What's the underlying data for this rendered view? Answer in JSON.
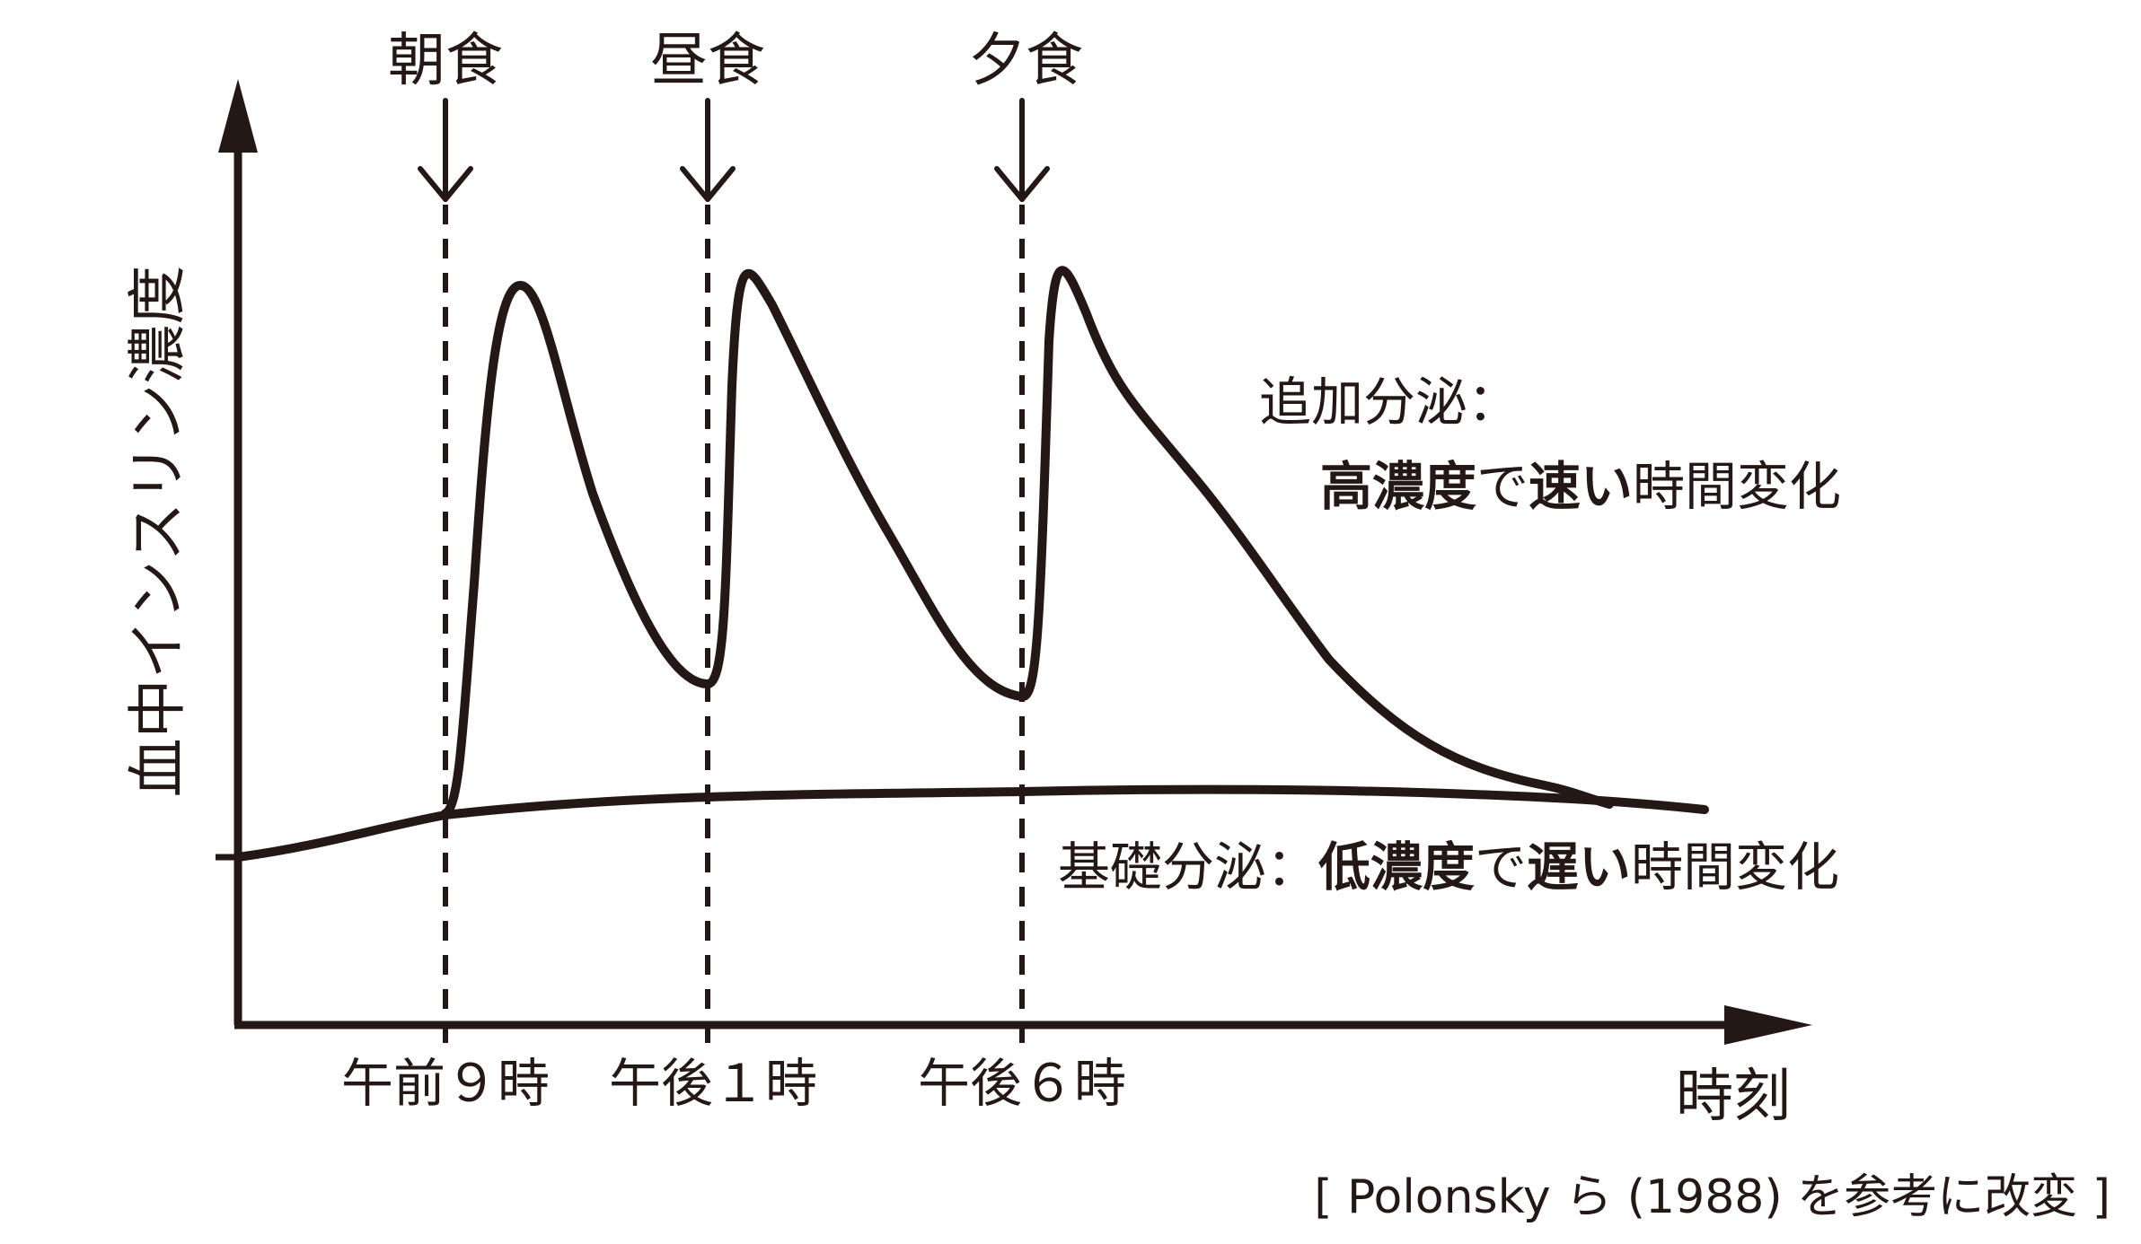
{
  "meals": [
    {
      "label": "朝食"
    },
    {
      "label": "昼食"
    },
    {
      "label": "夕食"
    }
  ],
  "x_ticks": [
    "午前９時",
    "午後１時",
    "午後６時"
  ],
  "x_axis_label": "時刻",
  "y_axis_label": "血中インスリン濃度",
  "additional_secretion": {
    "title": "追加分泌：",
    "bold1": "高濃度",
    "mid": "で",
    "bold2": "速い",
    "rest": "時間変化"
  },
  "basal_secretion": {
    "title": "基礎分泌：",
    "bold1": "低濃度",
    "mid": "で",
    "bold2": "遅い",
    "rest": "時間変化"
  },
  "source": "[ Polonsky ら (1988) を参考に改変 ]",
  "colors": {
    "ink": "#231815",
    "background": "#ffffff"
  }
}
